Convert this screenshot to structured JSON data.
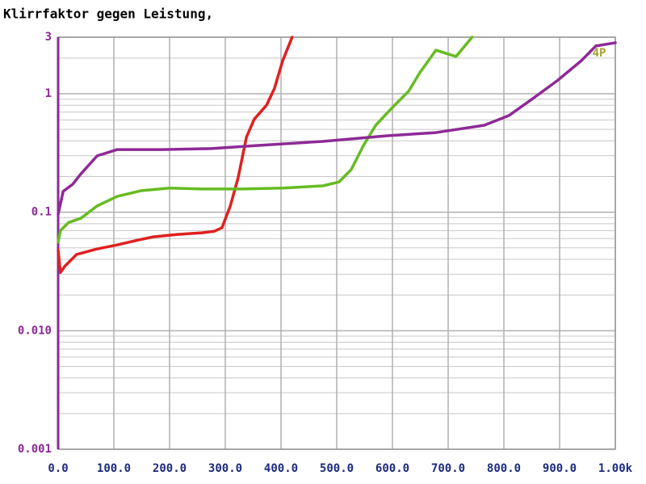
{
  "chart_data": {
    "type": "line",
    "title": "Klirrfaktor gegen Leistung,",
    "annotation": "4P",
    "ylog": true,
    "grid": true,
    "xlim": [
      0,
      1000
    ],
    "ylim": [
      0.001,
      3
    ],
    "xticks": [
      {
        "value": 0,
        "label": "0.0"
      },
      {
        "value": 100,
        "label": "100.0"
      },
      {
        "value": 200,
        "label": "200.0"
      },
      {
        "value": 300,
        "label": "300.0"
      },
      {
        "value": 400,
        "label": "400.0"
      },
      {
        "value": 500,
        "label": "500.0"
      },
      {
        "value": 600,
        "label": "600.0"
      },
      {
        "value": 700,
        "label": "700.0"
      },
      {
        "value": 800,
        "label": "800.0"
      },
      {
        "value": 900,
        "label": "900.0"
      },
      {
        "value": 1000,
        "label": "1.00k"
      }
    ],
    "yticks": [
      0.001,
      {
        "value": 0.01,
        "label": "0.010"
      },
      0.1,
      1,
      3
    ],
    "minor_yticks": [
      0.002,
      0.003,
      0.004,
      0.005,
      0.006,
      0.007,
      0.008,
      0.009,
      0.02,
      0.03,
      0.04,
      0.05,
      0.06,
      0.07,
      0.08,
      0.09,
      0.2,
      0.3,
      0.4,
      0.5,
      0.6,
      0.7,
      0.8,
      0.9,
      2
    ],
    "series": [
      {
        "color": "#e02020",
        "x": [
          0,
          4,
          12,
          33,
          70,
          106,
          142,
          171,
          214,
          258,
          280,
          294,
          309,
          323,
          338,
          352,
          374,
          388,
          403,
          420
        ],
        "values": [
          0.048,
          0.031,
          0.035,
          0.044,
          0.049,
          0.053,
          0.058,
          0.062,
          0.065,
          0.067,
          0.069,
          0.074,
          0.113,
          0.195,
          0.43,
          0.61,
          0.8,
          1.1,
          1.9,
          3.0
        ]
      },
      {
        "color": "#66bb22",
        "x": [
          0,
          4,
          19,
          41,
          70,
          106,
          149,
          200,
          258,
          330,
          403,
          475,
          504,
          526,
          548,
          570,
          600,
          629,
          649,
          678,
          714,
          743
        ],
        "values": [
          0.056,
          0.07,
          0.082,
          0.089,
          0.113,
          0.136,
          0.152,
          0.16,
          0.157,
          0.157,
          0.16,
          0.167,
          0.18,
          0.229,
          0.366,
          0.542,
          0.766,
          1.05,
          1.5,
          2.33,
          2.06,
          3.0
        ]
      },
      {
        "color": "#8e2a96",
        "x": [
          0,
          9,
          26,
          41,
          70,
          106,
          186,
          272,
          359,
          475,
          591,
          678,
          765,
          809,
          852,
          896,
          939,
          965,
          1000
        ],
        "values": [
          0.096,
          0.15,
          0.172,
          0.211,
          0.299,
          0.338,
          0.338,
          0.344,
          0.366,
          0.396,
          0.442,
          0.47,
          0.542,
          0.654,
          0.91,
          1.29,
          1.9,
          2.53,
          2.69
        ]
      }
    ]
  }
}
